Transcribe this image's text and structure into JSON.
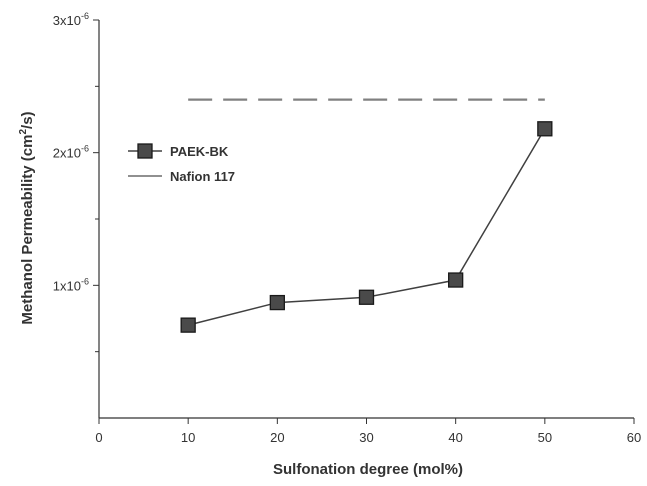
{
  "chart_data": {
    "type": "line",
    "xlabel": "Sulfonation degree (mol%)",
    "ylabel_parts": {
      "before_sup": "Methanol Permeability (cm",
      "sup": "2",
      "after_sup": "/s)"
    },
    "xlim": [
      0,
      60
    ],
    "ylim": [
      0,
      3e-06
    ],
    "x_ticks": [
      {
        "value": 0,
        "label": "0"
      },
      {
        "value": 10,
        "label": "10"
      },
      {
        "value": 20,
        "label": "20"
      },
      {
        "value": 30,
        "label": "30"
      },
      {
        "value": 40,
        "label": "40"
      },
      {
        "value": 50,
        "label": "50"
      },
      {
        "value": 60,
        "label": "60"
      }
    ],
    "y_ticks": [
      {
        "value": 1e-06,
        "mantissa": "1x10",
        "exp": "-6"
      },
      {
        "value": 2e-06,
        "mantissa": "2x10",
        "exp": "-6"
      },
      {
        "value": 3e-06,
        "mantissa": "3x10",
        "exp": "-6"
      }
    ],
    "y_minor_ticks": [
      5e-07,
      1.5e-06,
      2.5e-06
    ],
    "series": [
      {
        "name": "PAEK-BK",
        "style": "line-square-marker",
        "color": "#404040",
        "marker_fill": "#4a4a4a",
        "x": [
          10,
          20,
          30,
          40,
          50
        ],
        "y": [
          7e-07,
          8.7e-07,
          9.1e-07,
          1.04e-06,
          2.18e-06
        ]
      },
      {
        "name": "Nafion 117",
        "style": "dashed",
        "color": "#808080",
        "x": [
          10,
          50
        ],
        "y": [
          2.4e-06,
          2.4e-06
        ]
      }
    ],
    "legend_position": "upper-left",
    "grid": false
  }
}
